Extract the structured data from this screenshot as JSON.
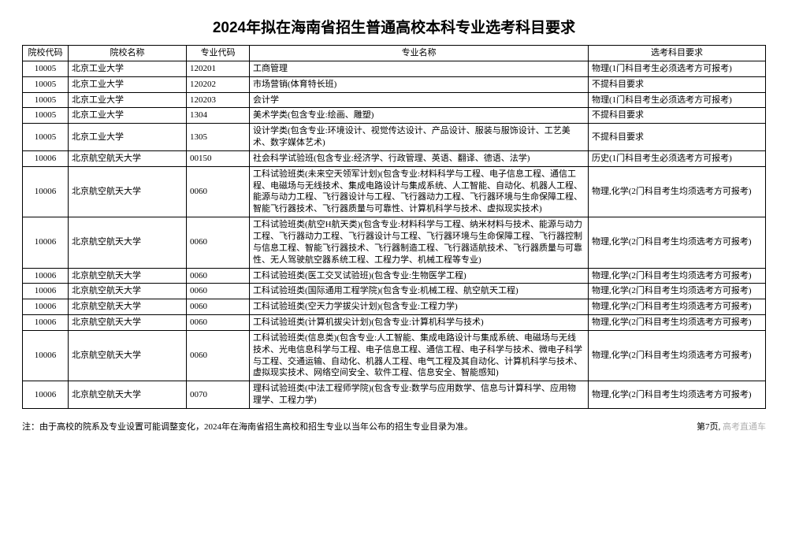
{
  "title": "2024年拟在海南省招生普通高校本科专业选考科目要求",
  "columns": [
    "院校代码",
    "院校名称",
    "专业代码",
    "专业名称",
    "选考科目要求"
  ],
  "rows": [
    [
      "10005",
      "北京工业大学",
      "120201",
      "工商管理",
      "物理(1门科目考生必须选考方可报考)"
    ],
    [
      "10005",
      "北京工业大学",
      "120202",
      "市场营销(体育特长班)",
      "不提科目要求"
    ],
    [
      "10005",
      "北京工业大学",
      "120203",
      "会计学",
      "物理(1门科目考生必须选考方可报考)"
    ],
    [
      "10005",
      "北京工业大学",
      "1304",
      "美术学类(包含专业:绘画、雕塑)",
      "不提科目要求"
    ],
    [
      "10005",
      "北京工业大学",
      "1305",
      "设计学类(包含专业:环境设计、视觉传达设计、产品设计、服装与服饰设计、工艺美术、数字媒体艺术)",
      "不提科目要求"
    ],
    [
      "10006",
      "北京航空航天大学",
      "00150",
      "社会科学试验班(包含专业:经济学、行政管理、英语、翻译、德语、法学)",
      "历史(1门科目考生必须选考方可报考)"
    ],
    [
      "10006",
      "北京航空航天大学",
      "0060",
      "工科试验班类(未来空天领军计划)(包含专业:材料科学与工程、电子信息工程、通信工程、电磁场与无线技术、集成电路设计与集成系统、人工智能、自动化、机器人工程、能源与动力工程、飞行器设计与工程、飞行器动力工程、飞行器环境与生命保障工程、智能飞行器技术、飞行器质量与可靠性、计算机科学与技术、虚拟现实技术)",
      "物理,化学(2门科目考生均须选考方可报考)"
    ],
    [
      "10006",
      "北京航空航天大学",
      "0060",
      "工科试验班类(航空H航天类)(包含专业:材料科学与工程、纳米材料与技术、能源与动力工程、飞行器动力工程、飞行器设计与工程、飞行器环境与生命保障工程、飞行器控制与信息工程、智能飞行器技术、飞行器制造工程、飞行器适航技术、飞行器质量与可靠性、无人驾驶航空器系统工程、工程力学、机械工程等专业)",
      "物理,化学(2门科目考生均须选考方可报考)"
    ],
    [
      "10006",
      "北京航空航天大学",
      "0060",
      "工科试验班类(医工交叉试验班)(包含专业:生物医学工程)",
      "物理,化学(2门科目考生均须选考方可报考)"
    ],
    [
      "10006",
      "北京航空航天大学",
      "0060",
      "工科试验班类(国际通用工程学院)(包含专业:机械工程、航空航天工程)",
      "物理,化学(2门科目考生均须选考方可报考)"
    ],
    [
      "10006",
      "北京航空航天大学",
      "0060",
      "工科试验班类(空天力学拔尖计划)(包含专业:工程力学)",
      "物理,化学(2门科目考生均须选考方可报考)"
    ],
    [
      "10006",
      "北京航空航天大学",
      "0060",
      "工科试验班类(计算机拔尖计划)(包含专业:计算机科学与技术)",
      "物理,化学(2门科目考生均须选考方可报考)"
    ],
    [
      "10006",
      "北京航空航天大学",
      "0060",
      "工科试验班类(信息类)(包含专业:人工智能、集成电路设计与集成系统、电磁场与无线技术、光电信息科学与工程、电子信息工程、通信工程、电子科学与技术、微电子科学与工程、交通运输、自动化、机器人工程、电气工程及其自动化、计算机科学与技术、虚拟现实技术、网络空间安全、软件工程、信息安全、智能感知)",
      "物理,化学(2门科目考生均须选考方可报考)"
    ],
    [
      "10006",
      "北京航空航天大学",
      "0070",
      "理科试验班类(中法工程师学院)(包含专业:数学与应用数学、信息与计算科学、应用物理学、工程力学)",
      "物理,化学(2门科目考生均须选考方可报考)"
    ]
  ],
  "footnote_left": "注：由于高校的院系及专业设置可能调整变化，2024年在海南省招生高校和招生专业以当年公布的招生专业目录为准。",
  "footnote_right_page": "第7页,",
  "footnote_right_mark": "高考直通车"
}
